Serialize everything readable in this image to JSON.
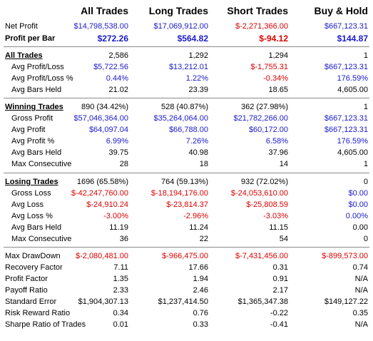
{
  "columns": [
    "All Trades",
    "Long Trades",
    "Short Trades",
    "Buy & Hold"
  ],
  "sections": [
    {
      "rows": [
        {
          "label": "Net Profit",
          "values": [
            "$14,798,538.00",
            "$17,069,912.00",
            "$-2,271,366.00",
            "$667,123.31"
          ],
          "colors": [
            "blue",
            "blue",
            "red",
            "blue"
          ]
        },
        {
          "label": "Profit per Bar",
          "bold": true,
          "values": [
            "$272.26",
            "$564.82",
            "$-94.12",
            "$144.87"
          ],
          "colors": [
            "blue",
            "blue",
            "red",
            "blue"
          ]
        }
      ]
    },
    {
      "header": {
        "label": "All Trades",
        "values": [
          "2,586",
          "1,292",
          "1,294",
          "1"
        ]
      },
      "rows": [
        {
          "label": "Avg Profit/Loss",
          "values": [
            "$5,722.56",
            "$13,212.01",
            "$-1,755.31",
            "$667,123.31"
          ],
          "colors": [
            "blue",
            "blue",
            "red",
            "blue"
          ]
        },
        {
          "label": "Avg Profit/Loss %",
          "values": [
            "0.44%",
            "1.22%",
            "-0.34%",
            "176.59%"
          ],
          "colors": [
            "blue",
            "blue",
            "red",
            "blue"
          ]
        },
        {
          "label": "Avg Bars Held",
          "values": [
            "21.02",
            "23.39",
            "18.65",
            "4,605.00"
          ]
        }
      ]
    },
    {
      "header": {
        "label": "Winning Trades",
        "values": [
          "890 (34.42%)",
          "528 (40.87%)",
          "362 (27.98%)",
          "1"
        ]
      },
      "rows": [
        {
          "label": "Gross Profit",
          "values": [
            "$57,046,364.00",
            "$35,264,064.00",
            "$21,782,266.00",
            "$667,123.31"
          ],
          "colors": [
            "blue",
            "blue",
            "blue",
            "blue"
          ]
        },
        {
          "label": "Avg Profit",
          "values": [
            "$64,097.04",
            "$66,788.00",
            "$60,172.00",
            "$667,123.31"
          ],
          "colors": [
            "blue",
            "blue",
            "blue",
            "blue"
          ]
        },
        {
          "label": "Avg Profit %",
          "values": [
            "6.99%",
            "7.26%",
            "6.58%",
            "176.59%"
          ],
          "colors": [
            "blue",
            "blue",
            "blue",
            "blue"
          ]
        },
        {
          "label": "Avg Bars Held",
          "values": [
            "39.75",
            "40.98",
            "37.96",
            "4,605.00"
          ]
        },
        {
          "label": "Max Consecutive",
          "values": [
            "28",
            "18",
            "14",
            "1"
          ]
        }
      ]
    },
    {
      "header": {
        "label": "Losing Trades",
        "values": [
          "1696 (65.58%)",
          "764 (59.13%)",
          "932 (72.02%)",
          "0"
        ]
      },
      "rows": [
        {
          "label": "Gross Loss",
          "values": [
            "$-42,247,760.00",
            "$-18,194,176.00",
            "$-24,053,610.00",
            "$0.00"
          ],
          "colors": [
            "red",
            "red",
            "red",
            "blue"
          ]
        },
        {
          "label": "Avg Loss",
          "values": [
            "$-24,910.24",
            "$-23,814.37",
            "$-25,808.59",
            "$0.00"
          ],
          "colors": [
            "red",
            "red",
            "red",
            "blue"
          ]
        },
        {
          "label": "Avg Loss %",
          "values": [
            "-3.00%",
            "-2.96%",
            "-3.03%",
            "0.00%"
          ],
          "colors": [
            "red",
            "red",
            "red",
            "blue"
          ]
        },
        {
          "label": "Avg Bars Held",
          "values": [
            "11.19",
            "11.24",
            "11.15",
            "0.00"
          ]
        },
        {
          "label": "Max Consecutive",
          "values": [
            "36",
            "22",
            "54",
            "0"
          ]
        }
      ]
    },
    {
      "flat": true,
      "rows": [
        {
          "label": "Max DrawDown",
          "values": [
            "$-2,080,481.00",
            "$-966,475.00",
            "$-7,431,456.00",
            "$-899,573.00"
          ],
          "colors": [
            "red",
            "red",
            "red",
            "red"
          ]
        },
        {
          "label": "Recovery Factor",
          "values": [
            "7.11",
            "17.66",
            "0.31",
            "0.74"
          ]
        },
        {
          "label": "Profit Factor",
          "values": [
            "1.35",
            "1.94",
            "0.91",
            "N/A"
          ]
        },
        {
          "label": "Payoff Ratio",
          "values": [
            "2.33",
            "2.46",
            "2.17",
            "N/A"
          ]
        },
        {
          "label": "Standard Error",
          "values": [
            "$1,904,307.13",
            "$1,237,414.50",
            "$1,365,347.38",
            "$149,127.22"
          ]
        },
        {
          "label": "Risk Reward Ratio",
          "values": [
            "0.34",
            "0.76",
            "-0.22",
            "0.35"
          ]
        },
        {
          "label": "Sharpe Ratio of Trades",
          "values": [
            "0.01",
            "0.33",
            "-0.41",
            "N/A"
          ]
        }
      ]
    }
  ]
}
